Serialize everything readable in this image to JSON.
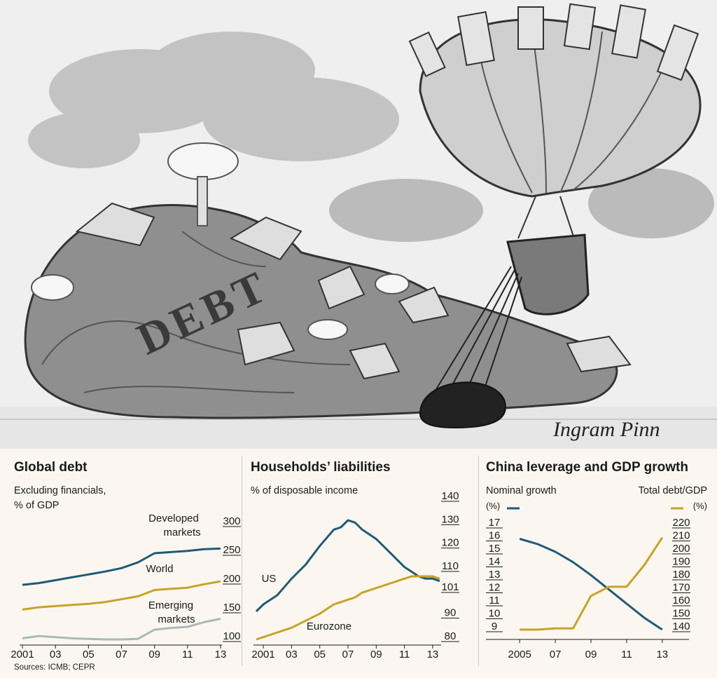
{
  "source": "Sources: ICMB; CEPR",
  "signature": "Ingram Pinn",
  "cartoon_text": "DEBT",
  "colors": {
    "blue": "#1e5b79",
    "gold": "#c9a227",
    "grey": "#a9bab7",
    "ink": "#1a1a1a"
  },
  "chart_data": [
    {
      "type": "line",
      "title": "Global debt",
      "subtitle_lines": [
        "Excluding financials,",
        "% of GDP"
      ],
      "x": [
        2001,
        2002,
        2003,
        2004,
        2005,
        2006,
        2007,
        2008,
        2009,
        2010,
        2011,
        2012,
        2013
      ],
      "xtick_labels": [
        "2001",
        "03",
        "05",
        "07",
        "09",
        "11",
        "13"
      ],
      "xtick_values": [
        2001,
        2003,
        2005,
        2007,
        2009,
        2011,
        2013
      ],
      "ylim": [
        100,
        300
      ],
      "yticks": [
        100,
        150,
        200,
        250,
        300
      ],
      "series": [
        {
          "name": "Developed markets",
          "label_lines": [
            "Developed",
            "markets"
          ],
          "color": "#1e5b79",
          "values": [
            195,
            198,
            203,
            208,
            213,
            218,
            224,
            234,
            250,
            252,
            254,
            257,
            258
          ]
        },
        {
          "name": "World",
          "label_lines": [
            "World"
          ],
          "color": "#c9a227",
          "values": [
            152,
            156,
            158,
            160,
            162,
            165,
            170,
            175,
            186,
            188,
            190,
            196,
            201
          ]
        },
        {
          "name": "Emerging markets",
          "label_lines": [
            "Emerging",
            "markets"
          ],
          "color": "#a9bab7",
          "values": [
            102,
            106,
            104,
            102,
            101,
            100,
            100,
            101,
            117,
            120,
            122,
            130,
            136
          ]
        }
      ]
    },
    {
      "type": "line",
      "title": "Households’ liabilities",
      "subtitle_lines": [
        "% of disposable income"
      ],
      "x": [
        2000.5,
        2001,
        2002,
        2003,
        2004,
        2005,
        2006,
        2006.5,
        2007,
        2007.5,
        2008,
        2009,
        2010,
        2010.5,
        2011,
        2011.5,
        2012,
        2012.5,
        2013,
        2013.5
      ],
      "xtick_labels": [
        "2001",
        "03",
        "05",
        "07",
        "09",
        "11",
        "13"
      ],
      "xtick_values": [
        2001,
        2003,
        2005,
        2007,
        2009,
        2011,
        2013
      ],
      "ylim": [
        80,
        140
      ],
      "yticks": [
        80,
        90,
        101,
        110,
        120,
        130,
        140
      ],
      "series": [
        {
          "name": "US",
          "label_lines": [
            "US"
          ],
          "color": "#1e5b79",
          "values": [
            92,
            95,
            99,
            106,
            112,
            120,
            127,
            128,
            131,
            130,
            127,
            123,
            117,
            114,
            111,
            109,
            107,
            106,
            106,
            105
          ]
        },
        {
          "name": "Eurozone",
          "label_lines": [
            "Eurozone"
          ],
          "color": "#c9a227",
          "values": [
            80,
            81,
            83,
            85,
            88,
            91,
            95,
            96,
            97,
            98,
            100,
            102,
            104,
            105,
            106,
            107,
            107,
            107,
            107,
            106
          ]
        }
      ]
    },
    {
      "type": "line",
      "title": "China leverage and GDP growth",
      "left_axis_label": "Nominal growth",
      "left_axis_unit": "(%)",
      "right_axis_label": "Total debt/GDP",
      "right_axis_unit": "(%)",
      "x": [
        2005,
        2006,
        2007,
        2008,
        2009,
        2010,
        2011,
        2012,
        2013
      ],
      "xtick_labels": [
        "2005",
        "07",
        "09",
        "11",
        "13"
      ],
      "xtick_values": [
        2005,
        2007,
        2009,
        2011,
        2013
      ],
      "y_left_lim": [
        9,
        17
      ],
      "y_left_ticks": [
        9,
        10,
        11,
        12,
        13,
        14,
        15,
        16,
        17
      ],
      "y_right_lim": [
        140,
        220
      ],
      "y_right_ticks": [
        140,
        150,
        160,
        170,
        180,
        190,
        200,
        210,
        220
      ],
      "series": [
        {
          "name": "Nominal growth",
          "axis": "left",
          "color": "#1e5b79",
          "values": [
            16,
            15.6,
            15,
            14.2,
            13.2,
            12.1,
            11,
            9.9,
            9
          ]
        },
        {
          "name": "Total debt/GDP",
          "axis": "right",
          "color": "#c9a227",
          "values": [
            140,
            140,
            141,
            141,
            166,
            173,
            173,
            190,
            211
          ]
        }
      ]
    }
  ]
}
